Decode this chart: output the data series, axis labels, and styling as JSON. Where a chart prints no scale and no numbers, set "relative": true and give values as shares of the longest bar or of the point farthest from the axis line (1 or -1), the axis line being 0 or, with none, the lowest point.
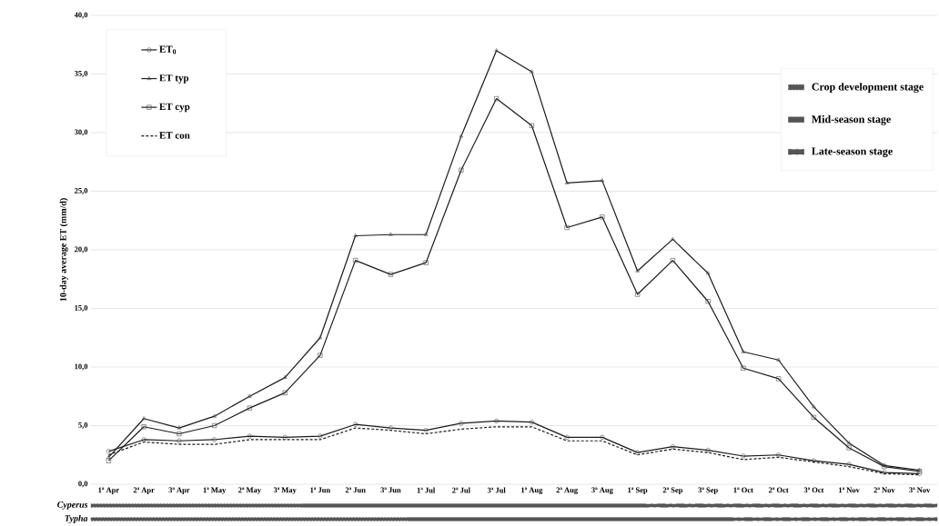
{
  "chart_data": [
    {
      "type": "line",
      "ylabel": "10-day average ET (mm/d)",
      "categories": [
        "1ª Apr",
        "2ª Apr",
        "3ª Apr",
        "1ª May",
        "2ª May",
        "3ª May",
        "1ª Jun",
        "2ª Jun",
        "3ª Jun",
        "1ª Jul",
        "2ª Jul",
        "3ª Jul",
        "1ª Aug",
        "2ª Aug",
        "3ª Aug",
        "1ª Sep",
        "2ª Sep",
        "3ª Sep",
        "1ª Oct",
        "2ª Oct",
        "3ª Oct",
        "1ª Nov",
        "2ª Nov",
        "3ª Nov"
      ],
      "series": [
        {
          "name": "ET$_{0}$",
          "color": "#1a1a1a",
          "marker": "circle",
          "line_style": "solid",
          "values": [
            2.8,
            3.8,
            3.7,
            3.8,
            4.1,
            4.0,
            4.1,
            5.1,
            4.8,
            4.6,
            5.2,
            5.4,
            5.3,
            4.0,
            4.0,
            2.7,
            3.2,
            2.9,
            2.4,
            2.5,
            2.0,
            1.7,
            1.0,
            0.9
          ]
        },
        {
          "name": "ET typ",
          "color": "#1a1a1a",
          "marker": "triangle",
          "line_style": "solid",
          "values": [
            2.3,
            5.6,
            4.8,
            5.8,
            7.5,
            9.1,
            12.5,
            21.2,
            21.3,
            21.3,
            29.7,
            37.0,
            35.2,
            25.7,
            25.9,
            18.2,
            20.9,
            18.0,
            11.3,
            10.6,
            6.6,
            3.5,
            1.6,
            1.2
          ]
        },
        {
          "name": "ET cyp",
          "color": "#1a1a1a",
          "marker": "square",
          "line_style": "solid",
          "values": [
            2.0,
            4.9,
            4.3,
            5.0,
            6.5,
            7.8,
            11.0,
            19.1,
            17.9,
            18.9,
            26.8,
            32.9,
            30.6,
            21.9,
            22.8,
            16.2,
            19.1,
            15.6,
            9.9,
            9.0,
            5.7,
            3.1,
            1.5,
            1.1
          ]
        },
        {
          "name": "ET con",
          "color": "#1a1a1a",
          "marker": "none",
          "line_style": "dashed",
          "values": [
            2.5,
            3.6,
            3.4,
            3.4,
            3.8,
            3.8,
            3.8,
            4.8,
            4.6,
            4.3,
            4.7,
            4.9,
            4.9,
            3.7,
            3.7,
            2.5,
            3.0,
            2.7,
            2.1,
            2.3,
            1.9,
            1.5,
            0.9,
            0.8
          ]
        }
      ],
      "ylim": [
        0,
        40
      ],
      "yticks": [
        {
          "value": 0,
          "label": "0,0"
        },
        {
          "value": 5,
          "label": "5,0"
        },
        {
          "value": 10,
          "label": "10,0"
        },
        {
          "value": 15,
          "label": "15,0"
        },
        {
          "value": 20,
          "label": "20,0"
        },
        {
          "value": 25,
          "label": "25,0"
        },
        {
          "value": 30,
          "label": "30,0"
        },
        {
          "value": 35,
          "label": "35,0"
        },
        {
          "value": 40,
          "label": "40,0"
        }
      ],
      "grid": "y",
      "legend": "top left"
    },
    {
      "type": "bar",
      "orientation": "horizontal",
      "stacked": true,
      "relative": true,
      "tick_labels": "y",
      "categories": [
        "Cyperus",
        "Typha"
      ],
      "series": [
        {
          "name": "Crop development stage",
          "color": "#555555",
          "line_style": "dotted",
          "values": [
            0.25,
            0.375
          ]
        },
        {
          "name": "Mid-season stage",
          "color": "#555555",
          "line_style": "solid",
          "values": [
            0.4,
            0.375
          ]
        },
        {
          "name": "Late-season stage",
          "color": "#555555",
          "line_style": "dashed",
          "values": [
            0.35,
            0.25
          ]
        }
      ],
      "legend": "top right"
    }
  ]
}
